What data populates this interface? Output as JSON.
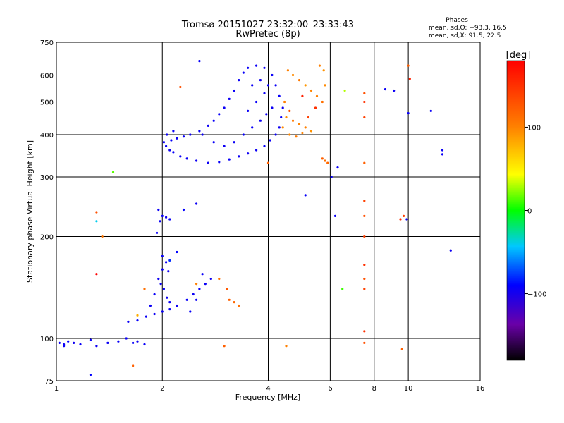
{
  "chart_data": {
    "type": "scatter",
    "title": "Tromsø 20151027 23:32:00–23:33:43",
    "subtitle": "RwPretec (8p)",
    "xlabel": "Frequency [MHz]",
    "ylabel": "Stationary phase Virtual Height [km]",
    "x_scale": "log",
    "y_scale": "log",
    "xlim": [
      1,
      16
    ],
    "ylim": [
      75,
      750
    ],
    "x_ticks": [
      1,
      2,
      4,
      6,
      8,
      10,
      16
    ],
    "x_tick_labels": [
      "1",
      "2",
      "4",
      "6",
      "8",
      "10",
      "16"
    ],
    "y_ticks": [
      75,
      100,
      200,
      300,
      400,
      500,
      600,
      750
    ],
    "y_tick_labels": [
      "75",
      "100",
      "200",
      "300",
      "400",
      "500",
      "600",
      "750"
    ],
    "grid": true,
    "phase_box": {
      "heading": "Phases",
      "line1": "mean, sd,O: −93.3, 16.5",
      "line2": "mean, sd,X:  91.5, 22.5"
    },
    "colorbar": {
      "label": "[deg]",
      "range": [
        -180,
        180
      ],
      "ticks": [
        100,
        0,
        -100
      ],
      "tick_labels": [
        "100",
        "0",
        "−100"
      ],
      "colormap": [
        "#000000",
        "#6a00a8",
        "#0000ff",
        "#00c8ff",
        "#00ff00",
        "#ffff00",
        "#ff8000",
        "#ff0000"
      ]
    },
    "series": [
      {
        "values": [
          [
            1.02,
            97,
            -95
          ],
          [
            1.05,
            95,
            -95
          ],
          [
            1.08,
            98,
            -92
          ],
          [
            1.12,
            97,
            -97
          ],
          [
            1.17,
            96,
            -94
          ],
          [
            1.25,
            99,
            -93
          ],
          [
            1.3,
            95,
            -96
          ],
          [
            1.4,
            97,
            -95
          ],
          [
            1.5,
            98,
            -94
          ],
          [
            1.58,
            100,
            -95
          ],
          [
            1.65,
            97,
            -93
          ],
          [
            1.7,
            98,
            -96
          ],
          [
            1.78,
            96,
            -94
          ],
          [
            1.6,
            112,
            -95
          ],
          [
            1.7,
            113,
            -92
          ],
          [
            1.8,
            116,
            -94
          ],
          [
            1.9,
            118,
            -96
          ],
          [
            2.0,
            120,
            -95
          ],
          [
            2.1,
            122,
            -93
          ],
          [
            1.85,
            125,
            -95
          ],
          [
            1.9,
            135,
            -94
          ],
          [
            1.95,
            150,
            -96
          ],
          [
            2.0,
            160,
            -95
          ],
          [
            2.0,
            175,
            -93
          ],
          [
            2.05,
            168,
            -94
          ],
          [
            2.08,
            158,
            -97
          ],
          [
            1.98,
            145,
            -95
          ],
          [
            2.02,
            140,
            -94
          ],
          [
            2.06,
            132,
            -95
          ],
          [
            2.1,
            128,
            -94
          ],
          [
            2.2,
            125,
            -96
          ],
          [
            2.35,
            130,
            -93
          ],
          [
            2.45,
            135,
            -95
          ],
          [
            2.55,
            140,
            -94
          ],
          [
            2.65,
            145,
            -95
          ],
          [
            2.75,
            150,
            -96
          ],
          [
            2.6,
            155,
            -94
          ],
          [
            2.5,
            130,
            -95
          ],
          [
            2.4,
            120,
            -93
          ],
          [
            1.93,
            205,
            -95
          ],
          [
            1.97,
            222,
            -95
          ],
          [
            2.0,
            230,
            -94
          ],
          [
            2.05,
            228,
            -96
          ],
          [
            2.1,
            225,
            -93
          ],
          [
            1.95,
            240,
            -95
          ],
          [
            2.02,
            380,
            -95
          ],
          [
            2.05,
            370,
            -93
          ],
          [
            2.1,
            360,
            -96
          ],
          [
            2.15,
            355,
            -94
          ],
          [
            2.25,
            345,
            -95
          ],
          [
            2.35,
            340,
            -94
          ],
          [
            2.5,
            335,
            -96
          ],
          [
            2.7,
            330,
            -95
          ],
          [
            2.9,
            332,
            -93
          ],
          [
            3.1,
            338,
            -94
          ],
          [
            3.3,
            345,
            -95
          ],
          [
            3.5,
            352,
            -96
          ],
          [
            3.7,
            360,
            -95
          ],
          [
            3.9,
            370,
            -93
          ],
          [
            4.05,
            385,
            -94
          ],
          [
            4.2,
            400,
            -95
          ],
          [
            4.3,
            420,
            -96
          ],
          [
            4.35,
            450,
            -94
          ],
          [
            4.4,
            480,
            -95
          ],
          [
            4.3,
            520,
            -93
          ],
          [
            4.2,
            560,
            -95
          ],
          [
            4.1,
            600,
            -94
          ],
          [
            3.9,
            630,
            -96
          ],
          [
            3.7,
            640,
            -95
          ],
          [
            3.5,
            630,
            -94
          ],
          [
            3.4,
            610,
            -93
          ],
          [
            3.3,
            580,
            -95
          ],
          [
            3.2,
            540,
            -94
          ],
          [
            3.1,
            510,
            -96
          ],
          [
            3.0,
            480,
            -95
          ],
          [
            2.9,
            460,
            -94
          ],
          [
            2.8,
            440,
            -93
          ],
          [
            2.7,
            425,
            -95
          ],
          [
            2.55,
            410,
            -94
          ],
          [
            2.4,
            400,
            -96
          ],
          [
            2.3,
            395,
            -95
          ],
          [
            2.2,
            390,
            -94
          ],
          [
            2.12,
            385,
            -93
          ],
          [
            2.06,
            400,
            -95
          ],
          [
            2.15,
            410,
            -94
          ],
          [
            2.6,
            400,
            -95
          ],
          [
            2.8,
            380,
            -94
          ],
          [
            3.0,
            370,
            -96
          ],
          [
            3.2,
            380,
            -95
          ],
          [
            3.4,
            400,
            -93
          ],
          [
            3.6,
            420,
            -94
          ],
          [
            3.8,
            440,
            -95
          ],
          [
            3.95,
            460,
            -96
          ],
          [
            4.1,
            480,
            -95
          ],
          [
            3.5,
            470,
            -94
          ],
          [
            3.7,
            500,
            -93
          ],
          [
            3.9,
            530,
            -95
          ],
          [
            4.0,
            560,
            -94
          ],
          [
            3.8,
            580,
            -96
          ],
          [
            3.6,
            560,
            -95
          ],
          [
            4.55,
            620,
            100
          ],
          [
            4.7,
            600,
            95
          ],
          [
            4.9,
            580,
            105
          ],
          [
            5.1,
            560,
            90
          ],
          [
            5.3,
            540,
            98
          ],
          [
            5.5,
            520,
            100
          ],
          [
            5.7,
            500,
            110
          ],
          [
            5.8,
            560,
            96
          ],
          [
            5.75,
            620,
            92
          ],
          [
            5.6,
            640,
            100
          ],
          [
            4.5,
            450,
            95
          ],
          [
            4.7,
            440,
            105
          ],
          [
            4.9,
            430,
            98
          ],
          [
            5.1,
            420,
            100
          ],
          [
            5.3,
            410,
            92
          ],
          [
            4.6,
            400,
            97
          ],
          [
            4.8,
            395,
            103
          ],
          [
            5.0,
            405,
            99
          ],
          [
            4.4,
            420,
            96
          ],
          [
            4.45,
            500,
            100
          ],
          [
            4.6,
            470,
            130
          ],
          [
            5.2,
            450,
            140
          ],
          [
            5.45,
            480,
            150
          ],
          [
            5.0,
            520,
            160
          ],
          [
            1.05,
            96,
            -95
          ],
          [
            1.45,
            310,
            15
          ],
          [
            2.55,
            660,
            -93
          ],
          [
            2.5,
            250,
            -95
          ],
          [
            2.3,
            240,
            -90
          ],
          [
            1.3,
            236,
            130
          ],
          [
            1.35,
            200,
            105
          ],
          [
            1.3,
            222,
            -40
          ],
          [
            1.3,
            155,
            180
          ],
          [
            1.25,
            78,
            -90
          ],
          [
            1.65,
            83,
            120
          ],
          [
            1.78,
            140,
            110
          ],
          [
            1.7,
            117,
            80
          ],
          [
            2.25,
            553,
            130
          ],
          [
            2.2,
            180,
            -90
          ],
          [
            2.1,
            170,
            -80
          ],
          [
            2.5,
            145,
            100
          ],
          [
            2.9,
            150,
            110
          ],
          [
            3.1,
            130,
            120
          ],
          [
            3.2,
            128,
            115
          ],
          [
            3.3,
            125,
            110
          ],
          [
            3.0,
            95,
            120
          ],
          [
            5.8,
            335,
            110
          ],
          [
            5.7,
            340,
            120
          ],
          [
            5.9,
            330,
            115
          ],
          [
            6.05,
            300,
            -95
          ],
          [
            6.3,
            320,
            -94
          ],
          [
            6.5,
            140,
            10
          ],
          [
            6.2,
            230,
            -95
          ],
          [
            6.6,
            540,
            30
          ],
          [
            7.5,
            530,
            130
          ],
          [
            7.5,
            500,
            150
          ],
          [
            7.5,
            450,
            140
          ],
          [
            7.5,
            330,
            120
          ],
          [
            7.5,
            255,
            140
          ],
          [
            7.5,
            230,
            130
          ],
          [
            7.5,
            200,
            140
          ],
          [
            7.5,
            165,
            150
          ],
          [
            7.5,
            150,
            130
          ],
          [
            7.5,
            140,
            140
          ],
          [
            7.5,
            105,
            150
          ],
          [
            7.5,
            97,
            130
          ],
          [
            8.6,
            545,
            -95
          ],
          [
            9.1,
            540,
            -95
          ],
          [
            9.5,
            225,
            150
          ],
          [
            9.7,
            230,
            140
          ],
          [
            9.9,
            225,
            -95
          ],
          [
            10.0,
            463,
            -94
          ],
          [
            10.0,
            640,
            120
          ],
          [
            10.1,
            585,
            160
          ],
          [
            9.6,
            93,
            120
          ],
          [
            11.6,
            470,
            -94
          ],
          [
            12.5,
            360,
            -95
          ],
          [
            12.5,
            350,
            -94
          ],
          [
            13.2,
            182,
            -96
          ],
          [
            4.5,
            95,
            100
          ],
          [
            5.1,
            265,
            -93
          ],
          [
            4.0,
            330,
            120
          ],
          [
            3.05,
            140,
            125
          ]
        ]
      }
    ]
  }
}
